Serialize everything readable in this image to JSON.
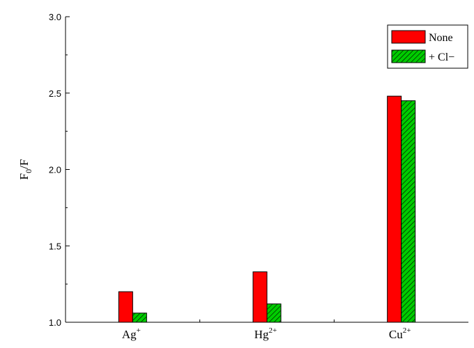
{
  "chart_data": {
    "type": "bar",
    "categories": [
      {
        "base": "Ag",
        "sup": "+"
      },
      {
        "base": "Hg",
        "sup": "2+"
      },
      {
        "base": "Cu",
        "sup": "2+"
      }
    ],
    "series": [
      {
        "name": "None",
        "values": [
          1.2,
          1.33,
          2.48
        ],
        "color": "#ff0000",
        "pattern": "solid"
      },
      {
        "name": "+ Cl−",
        "values": [
          1.06,
          1.12,
          2.45
        ],
        "color": "#00cc00",
        "pattern": "diagonal-hatch"
      }
    ],
    "ylabel": {
      "base": "F",
      "sub": "0",
      "tail": "/F"
    },
    "ylim": [
      1.0,
      3.0
    ],
    "yticks": [
      "1.0",
      "1.5",
      "2.0",
      "2.5",
      "3.0"
    ],
    "legend_position": "top-right",
    "grid": false
  }
}
